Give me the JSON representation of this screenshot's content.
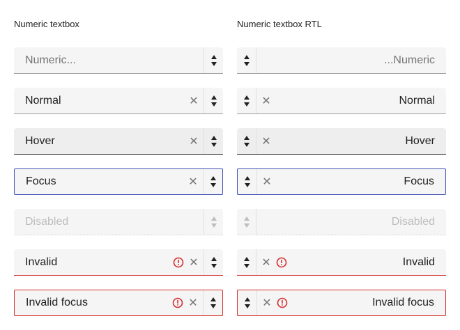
{
  "left": {
    "heading": "Numeric textbox",
    "fields": {
      "placeholder": "Numeric...",
      "normal": "Normal",
      "hover": "Hover",
      "focus": "Focus",
      "disabled": "Disabled",
      "invalid": "Invalid",
      "invalid_focus": "Invalid focus"
    }
  },
  "right": {
    "heading": "Numeric textbox RTL",
    "fields": {
      "placeholder": "...Numeric",
      "normal": "Normal",
      "hover": "Hover",
      "focus": "Focus",
      "disabled": "Disabled",
      "invalid": "Invalid",
      "invalid_focus": "Invalid focus"
    }
  },
  "icons": {
    "clear": "✕",
    "error": "error-circle-icon",
    "spin_up": "triangle-up",
    "spin_down": "triangle-down"
  },
  "colors": {
    "focus_border": "#3f51b5",
    "error": "#d32f2f",
    "text": "#212121",
    "field_bg": "#f5f5f5"
  }
}
